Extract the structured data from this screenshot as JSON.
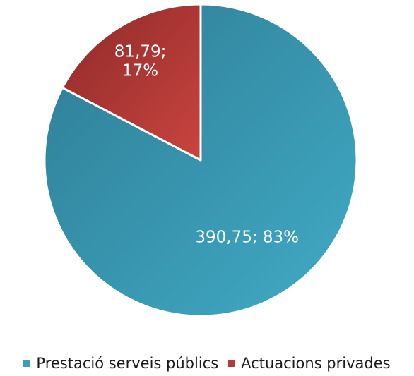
{
  "chart_data": {
    "type": "pie",
    "categories": [
      "Prestació serveis públics",
      "Actuacions privades"
    ],
    "values": [
      390.75,
      81.79
    ],
    "labels": [
      "390,75; 83%",
      "81,79; 17%"
    ],
    "label_lines": [
      [
        "390,75; 83%"
      ],
      [
        "81,79;",
        "17%"
      ]
    ],
    "colors": [
      "#3a9fb9",
      "#b83a38"
    ],
    "color_shading": [
      [
        "#2e7c94",
        "#41abc6"
      ],
      [
        "#8e2a29",
        "#c9443f"
      ]
    ],
    "start_position": "top",
    "direction": "clockwise",
    "legend_position": "bottom"
  },
  "legend": {
    "items": [
      {
        "label": "Prestació serveis públics",
        "color": "#3a9fb9"
      },
      {
        "label": "Actuacions privades",
        "color": "#b83a38"
      }
    ]
  }
}
